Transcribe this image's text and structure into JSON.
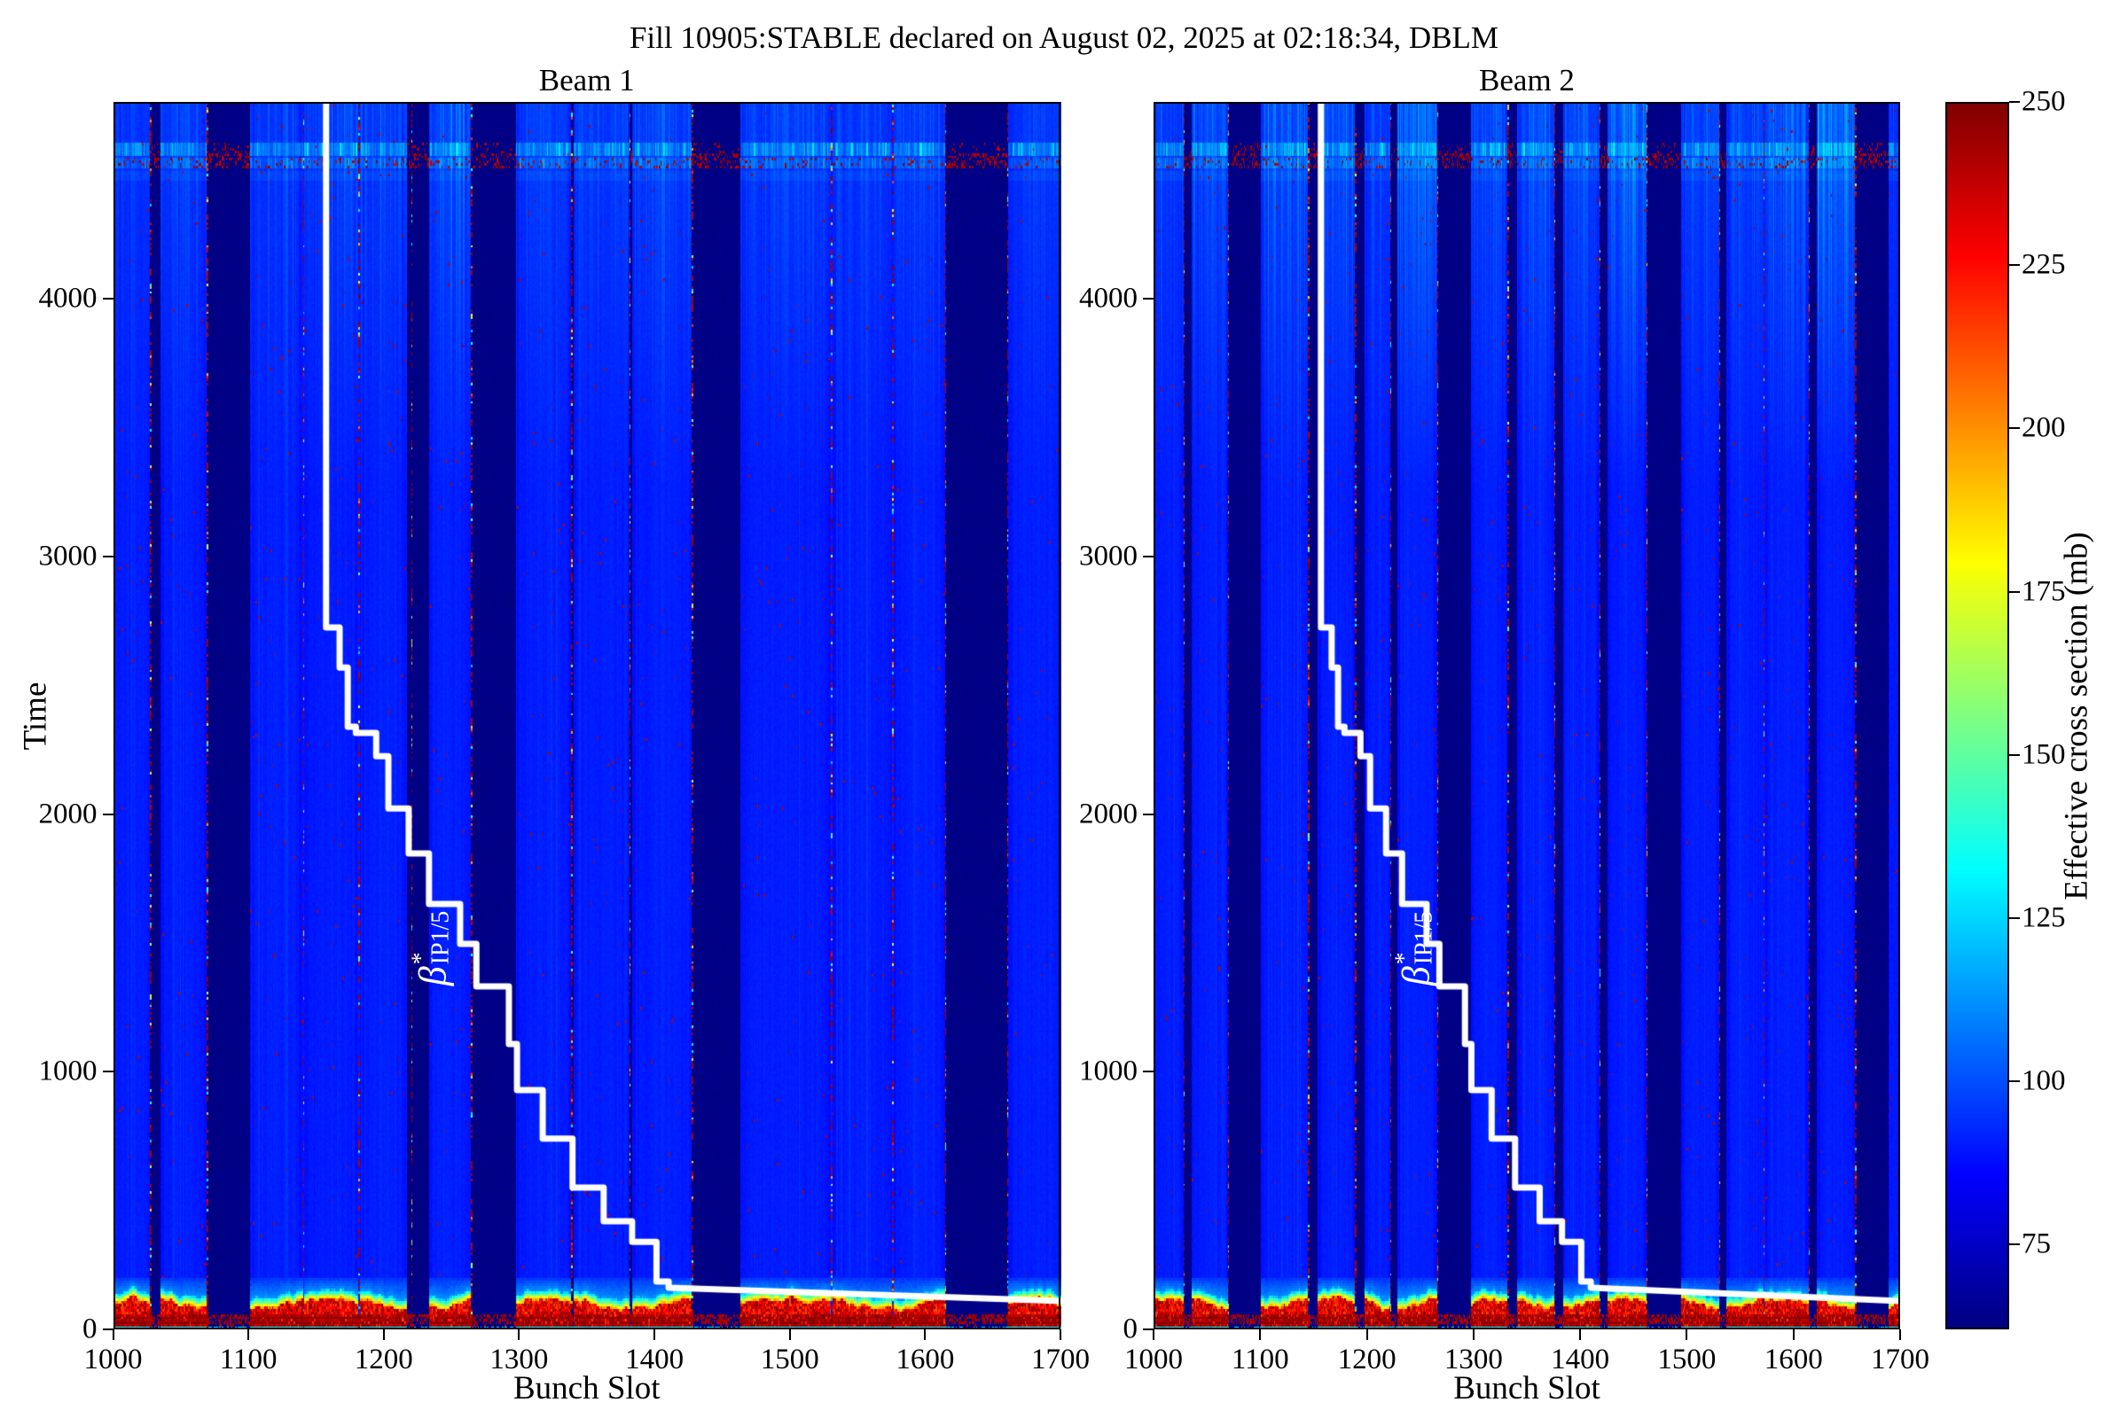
{
  "figure": {
    "title": "Fill 10905:STABLE declared on August 02, 2025 at 02:18:34, DBLM",
    "background_color": "#ffffff"
  },
  "chart_data": {
    "type": "heatmap",
    "xlabel": "Bunch Slot",
    "ylabel": "Time",
    "x_range": [
      1000,
      1700
    ],
    "y_range": [
      0,
      4764
    ],
    "x_ticks": [
      1000,
      1100,
      1200,
      1300,
      1400,
      1500,
      1600,
      1700
    ],
    "y_ticks": [
      0,
      1000,
      2000,
      3000,
      4000
    ],
    "colormap": "jet",
    "colorbar": {
      "label": "Effective cross section (mb)",
      "vmin": 62,
      "vmax": 250,
      "ticks": [
        75,
        100,
        125,
        150,
        175,
        200,
        225,
        250
      ]
    },
    "value_model": {
      "train_base_mb": 89.5,
      "gap_mb": 62.5,
      "bottom_dark_red_mb": 238,
      "bottom_dark_red_time": [
        10,
        58
      ],
      "blob_mb": 220,
      "blob_top_time_range": [
        70,
        148
      ],
      "transition_top_time": 200,
      "bottom_cyan_mb": 126,
      "bottom_cyan_time": [
        0,
        10
      ],
      "top_gradient_start_time": 3250,
      "streaks": [
        {
          "time": [
            4558,
            4606
          ],
          "amp": 20
        },
        {
          "time": [
            4506,
            4550
          ],
          "amp": 12
        },
        {
          "time": [
            4460,
            4500
          ],
          "amp": 3
        }
      ]
    },
    "panels": [
      {
        "title": "Beam 1",
        "trains": [
          [
            1000,
            1026,
            7
          ],
          [
            1035,
            1068,
            9
          ],
          [
            1101,
            1139,
            8
          ],
          [
            1141,
            1180,
            12
          ],
          [
            1182,
            1216,
            10
          ],
          [
            1233,
            1264,
            14
          ],
          [
            1297,
            1337,
            9
          ],
          [
            1340,
            1380,
            10
          ],
          [
            1383,
            1426,
            11
          ],
          [
            1463,
            1529,
            10
          ],
          [
            1531,
            1574,
            9
          ],
          [
            1576,
            1613,
            10
          ],
          [
            1661,
            1700,
            8
          ]
        ],
        "hot_edge_slots": [
          1027,
          1069,
          1140,
          1181,
          1220,
          1264,
          1338,
          1381,
          1427,
          1530,
          1575,
          1614,
          1660
        ],
        "beta_label_pos": {
          "slot": 1237,
          "time": 1480
        }
      },
      {
        "title": "Beam 2",
        "trains": [
          [
            1000,
            1027,
            9
          ],
          [
            1036,
            1069,
            13
          ],
          [
            1101,
            1144,
            15
          ],
          [
            1154,
            1188,
            17
          ],
          [
            1198,
            1221,
            11
          ],
          [
            1229,
            1265,
            19
          ],
          [
            1298,
            1331,
            13
          ],
          [
            1341,
            1375,
            15
          ],
          [
            1384,
            1417,
            13
          ],
          [
            1426,
            1461,
            21
          ],
          [
            1495,
            1529,
            13
          ],
          [
            1537,
            1571,
            11
          ],
          [
            1573,
            1613,
            15
          ],
          [
            1622,
            1657,
            23
          ],
          [
            1689,
            1700,
            9
          ]
        ],
        "hot_edge_slots": [
          1028,
          1070,
          1145,
          1189,
          1222,
          1266,
          1332,
          1376,
          1418,
          1462,
          1530,
          1572,
          1614,
          1658
        ],
        "beta_label_pos": {
          "slot": 1247,
          "time": 1480
        }
      }
    ],
    "beta_star_overlay": {
      "label_beta": "β",
      "label_sup": "*",
      "label_sub": "IP1/5",
      "color": "#ffffff",
      "points_slot_time": [
        [
          1157,
          4764
        ],
        [
          1157,
          2724
        ],
        [
          1167,
          2724
        ],
        [
          1167,
          2569
        ],
        [
          1173,
          2569
        ],
        [
          1173,
          2339
        ],
        [
          1179,
          2339
        ],
        [
          1179,
          2315
        ],
        [
          1194,
          2315
        ],
        [
          1194,
          2225
        ],
        [
          1203,
          2225
        ],
        [
          1203,
          2022
        ],
        [
          1218,
          2022
        ],
        [
          1218,
          1847
        ],
        [
          1233,
          1847
        ],
        [
          1233,
          1651
        ],
        [
          1256,
          1651
        ],
        [
          1256,
          1496
        ],
        [
          1268,
          1496
        ],
        [
          1268,
          1331
        ],
        [
          1292,
          1331
        ],
        [
          1292,
          1108
        ],
        [
          1298,
          1108
        ],
        [
          1298,
          929
        ],
        [
          1317,
          929
        ],
        [
          1317,
          740
        ],
        [
          1339,
          740
        ],
        [
          1339,
          550
        ],
        [
          1362,
          550
        ],
        [
          1362,
          420
        ],
        [
          1383,
          420
        ],
        [
          1383,
          340
        ],
        [
          1401,
          340
        ],
        [
          1401,
          186
        ],
        [
          1410,
          186
        ],
        [
          1410,
          162
        ],
        [
          1700,
          110
        ]
      ]
    }
  }
}
